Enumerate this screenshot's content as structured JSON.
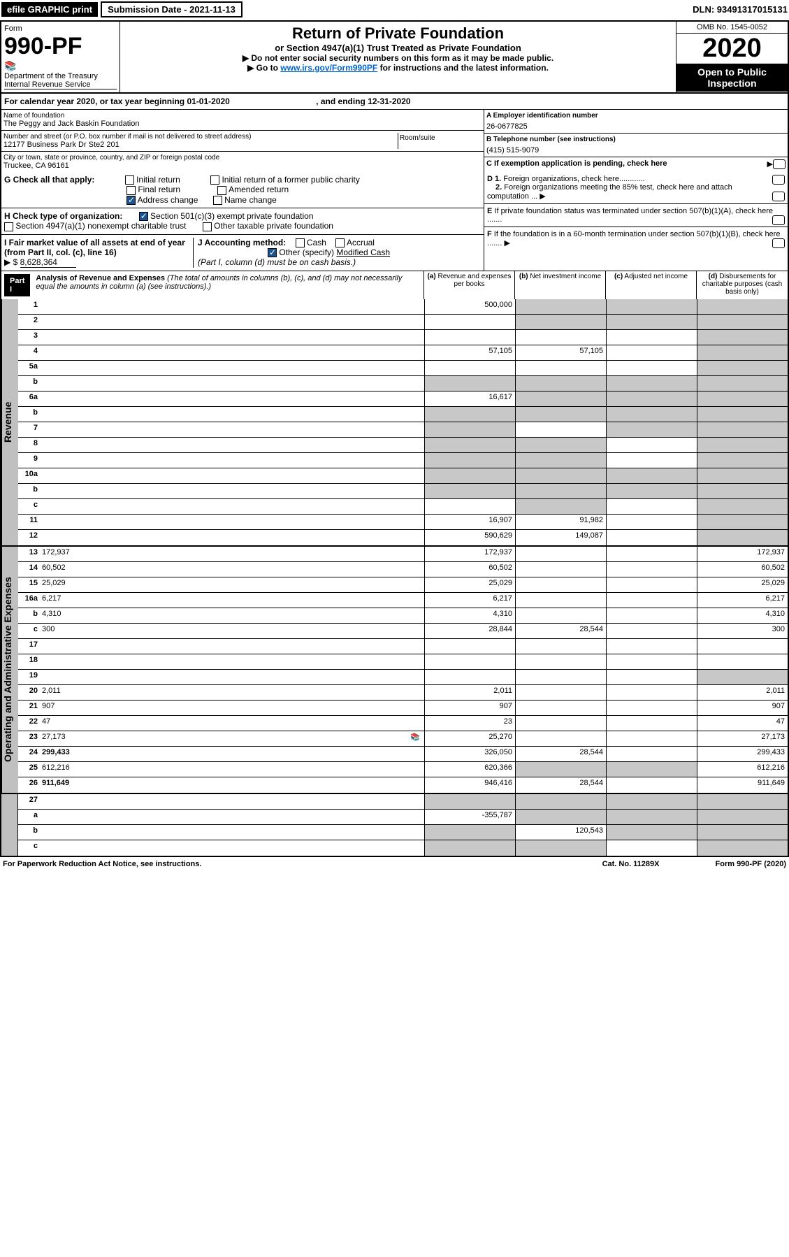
{
  "topbar": {
    "efile": "efile GRAPHIC print",
    "submission": "Submission Date - 2021-11-13",
    "dln": "DLN: 93491317015131"
  },
  "header": {
    "form": "Form",
    "formnum": "990-PF",
    "dept": "Department of the Treasury",
    "irs": "Internal Revenue Service",
    "title": "Return of Private Foundation",
    "sub": "or Section 4947(a)(1) Trust Treated as Private Foundation",
    "instr1": "▶ Do not enter social security numbers on this form as it may be made public.",
    "instr2": "▶ Go to ",
    "instr_link": "www.irs.gov/Form990PF",
    "instr3": " for instructions and the latest information.",
    "omb": "OMB No. 1545-0052",
    "year": "2020",
    "open": "Open to Public Inspection"
  },
  "calyear": {
    "prefix": "For calendar year 2020, or tax year beginning ",
    "begin": "01-01-2020",
    "mid": " , and ending ",
    "end": "12-31-2020"
  },
  "info": {
    "name_label": "Name of foundation",
    "name": "The Peggy and Jack Baskin Foundation",
    "addr_label": "Number and street (or P.O. box number if mail is not delivered to street address)",
    "addr": "12177 Business Park Dr Ste2 201",
    "room_label": "Room/suite",
    "city_label": "City or town, state or province, country, and ZIP or foreign postal code",
    "city": "Truckee, CA  96161",
    "ein_label": "A Employer identification number",
    "ein": "26-0677825",
    "tel_label": "B Telephone number (see instructions)",
    "tel": "(415) 515-9079",
    "c_label": "C If exemption application is pending, check here"
  },
  "checks": {
    "g_label": "G Check all that apply:",
    "g_initial": "Initial return",
    "g_initial_former": "Initial return of a former public charity",
    "g_final": "Final return",
    "g_amended": "Amended return",
    "g_address": "Address change",
    "g_name": "Name change",
    "h_label": "H Check type of organization:",
    "h_501c3": "Section 501(c)(3) exempt private foundation",
    "h_4947": "Section 4947(a)(1) nonexempt charitable trust",
    "h_other": "Other taxable private foundation",
    "i_label": "I Fair market value of all assets at end of year (from Part II, col. (c), line 16) ",
    "i_val": "8,628,364",
    "j_label": "J Accounting method:",
    "j_cash": "Cash",
    "j_accrual": "Accrual",
    "j_other": "Other (specify)",
    "j_other_val": "Modified Cash",
    "j_note": "(Part I, column (d) must be on cash basis.)",
    "d1": "D 1. Foreign organizations, check here",
    "d2": "2. Foreign organizations meeting the 85% test, check here and attach computation",
    "e": "E If private foundation status was terminated under section 507(b)(1)(A), check here",
    "f": "F If the foundation is in a 60-month termination under section 507(b)(1)(B), check here"
  },
  "part1": {
    "label": "Part I",
    "title": "Analysis of Revenue and Expenses",
    "note": " (The total of amounts in columns (b), (c), and (d) may not necessarily equal the amounts in column (a) (see instructions).)",
    "col_a": "(a) Revenue and expenses per books",
    "col_b": "(b) Net investment income",
    "col_c": "(c) Adjusted net income",
    "col_d": "(d) Disbursements for charitable purposes (cash basis only)"
  },
  "side_labels": {
    "revenue": "Revenue",
    "expenses": "Operating and Administrative Expenses"
  },
  "rows": [
    {
      "n": "1",
      "d": "",
      "a": "500,000",
      "b": "",
      "c": "",
      "sb": true,
      "sc": true,
      "sd": true
    },
    {
      "n": "2",
      "d": "",
      "a": "",
      "b": "",
      "c": "",
      "sb": true,
      "sc": true,
      "sd": true
    },
    {
      "n": "3",
      "d": "",
      "a": "",
      "b": "",
      "c": "",
      "sd": true
    },
    {
      "n": "4",
      "d": "",
      "a": "57,105",
      "b": "57,105",
      "c": "",
      "sd": true
    },
    {
      "n": "5a",
      "d": "",
      "a": "",
      "b": "",
      "c": "",
      "sd": true
    },
    {
      "n": "b",
      "d": "",
      "a": "",
      "b": "",
      "c": "",
      "sa": true,
      "sb": true,
      "sc": true,
      "sd": true
    },
    {
      "n": "6a",
      "d": "",
      "a": "16,617",
      "b": "",
      "c": "",
      "sb": true,
      "sc": true,
      "sd": true
    },
    {
      "n": "b",
      "d": "",
      "a": "",
      "b": "",
      "c": "",
      "sa": true,
      "sb": true,
      "sc": true,
      "sd": true
    },
    {
      "n": "7",
      "d": "",
      "a": "",
      "b": "",
      "c": "",
      "sa": true,
      "sc": true,
      "sd": true
    },
    {
      "n": "8",
      "d": "",
      "a": "",
      "b": "",
      "c": "",
      "sa": true,
      "sb": true,
      "sd": true
    },
    {
      "n": "9",
      "d": "",
      "a": "",
      "b": "",
      "c": "",
      "sa": true,
      "sb": true,
      "sd": true
    },
    {
      "n": "10a",
      "d": "",
      "a": "",
      "b": "",
      "c": "",
      "sa": true,
      "sb": true,
      "sc": true,
      "sd": true
    },
    {
      "n": "b",
      "d": "",
      "a": "",
      "b": "",
      "c": "",
      "sa": true,
      "sb": true,
      "sc": true,
      "sd": true
    },
    {
      "n": "c",
      "d": "",
      "a": "",
      "b": "",
      "c": "",
      "sb": true,
      "sd": true
    },
    {
      "n": "11",
      "d": "",
      "a": "16,907",
      "b": "91,982",
      "c": "",
      "sd": true
    },
    {
      "n": "12",
      "d": "",
      "a": "590,629",
      "b": "149,087",
      "c": "",
      "sd": true,
      "bold": true
    }
  ],
  "exp_rows": [
    {
      "n": "13",
      "d": "172,937",
      "a": "172,937",
      "b": "",
      "c": ""
    },
    {
      "n": "14",
      "d": "60,502",
      "a": "60,502",
      "b": "",
      "c": ""
    },
    {
      "n": "15",
      "d": "25,029",
      "a": "25,029",
      "b": "",
      "c": ""
    },
    {
      "n": "16a",
      "d": "6,217",
      "a": "6,217",
      "b": "",
      "c": ""
    },
    {
      "n": "b",
      "d": "4,310",
      "a": "4,310",
      "b": "",
      "c": ""
    },
    {
      "n": "c",
      "d": "300",
      "a": "28,844",
      "b": "28,544",
      "c": ""
    },
    {
      "n": "17",
      "d": "",
      "a": "",
      "b": "",
      "c": ""
    },
    {
      "n": "18",
      "d": "",
      "a": "",
      "b": "",
      "c": ""
    },
    {
      "n": "19",
      "d": "",
      "a": "",
      "b": "",
      "c": "",
      "sd": true
    },
    {
      "n": "20",
      "d": "2,011",
      "a": "2,011",
      "b": "",
      "c": ""
    },
    {
      "n": "21",
      "d": "907",
      "a": "907",
      "b": "",
      "c": ""
    },
    {
      "n": "22",
      "d": "47",
      "a": "23",
      "b": "",
      "c": ""
    },
    {
      "n": "23",
      "d": "27,173",
      "a": "25,270",
      "b": "",
      "c": "",
      "icon": true
    },
    {
      "n": "24",
      "d": "299,433",
      "a": "326,050",
      "b": "28,544",
      "c": "",
      "bold": true
    },
    {
      "n": "25",
      "d": "612,216",
      "a": "620,366",
      "b": "",
      "c": "",
      "sb": true,
      "sc": true
    },
    {
      "n": "26",
      "d": "911,649",
      "a": "946,416",
      "b": "28,544",
      "c": "",
      "bold": true
    }
  ],
  "bottom_rows": [
    {
      "n": "27",
      "d": "",
      "a": "",
      "b": "",
      "c": "",
      "sa": true,
      "sb": true,
      "sc": true,
      "sd": true
    },
    {
      "n": "a",
      "d": "",
      "a": "-355,787",
      "b": "",
      "c": "",
      "sb": true,
      "sc": true,
      "sd": true,
      "bold": true
    },
    {
      "n": "b",
      "d": "",
      "a": "",
      "b": "120,543",
      "c": "",
      "sa": true,
      "sc": true,
      "sd": true,
      "bold": true
    },
    {
      "n": "c",
      "d": "",
      "a": "",
      "b": "",
      "c": "",
      "sa": true,
      "sb": true,
      "sd": true,
      "bold": true
    }
  ],
  "footer": {
    "left": "For Paperwork Reduction Act Notice, see instructions.",
    "cat": "Cat. No. 11289X",
    "form": "Form 990-PF (2020)"
  }
}
